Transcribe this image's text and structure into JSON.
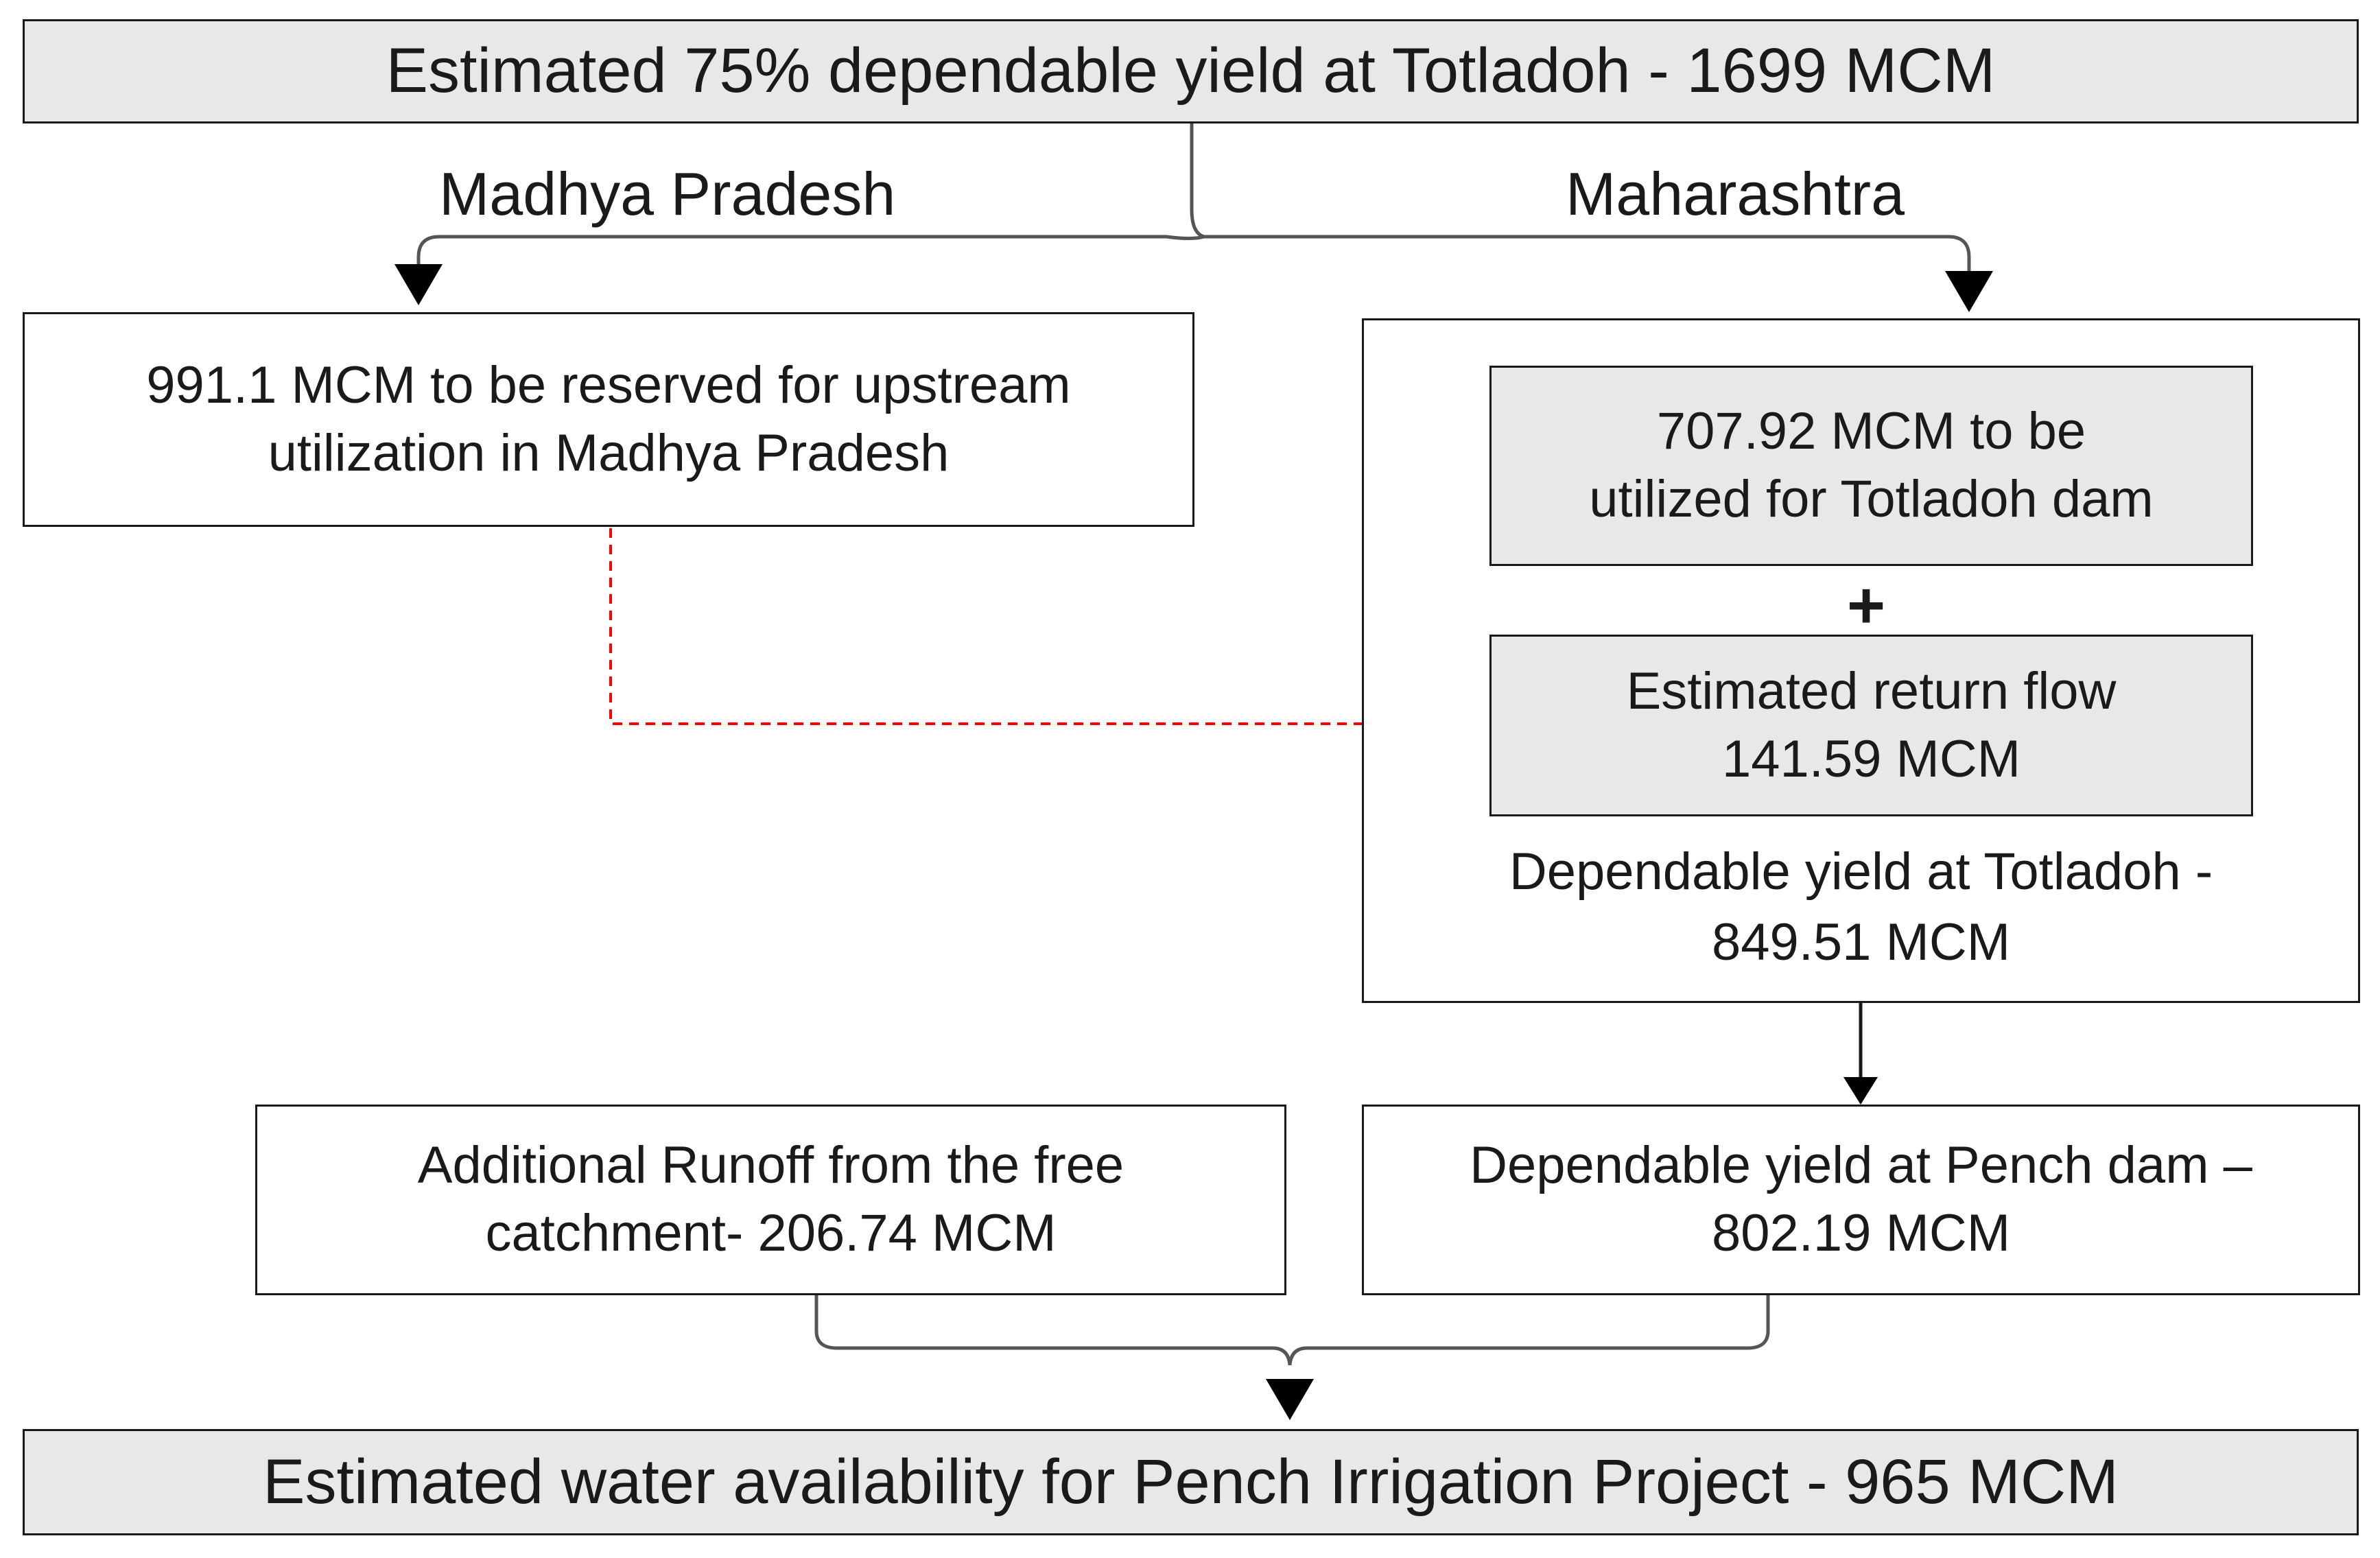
{
  "top_box": "Estimated 75% dependable yield at Totladoh - 1699 MCM",
  "branches": {
    "left_label": "Madhya Pradesh",
    "right_label": "Maharashtra"
  },
  "mp_box": {
    "line1": "991.1 MCM to be reserved for upstream",
    "line2": "utilization in Madhya Pradesh"
  },
  "maharashtra_group": {
    "utilized_box": {
      "line1": "707.92 MCM to be",
      "line2": "utilized for Totladoh dam"
    },
    "plus_sign": "+",
    "return_flow_box": {
      "line1": "Estimated return flow",
      "line2": "141.59 MCM"
    },
    "dependable_text": {
      "line1": "Dependable yield at Totladoh -",
      "line2": "849.51 MCM"
    }
  },
  "runoff_box": {
    "line1": "Additional Runoff from the free",
    "line2": "catchment- 206.74 MCM"
  },
  "pench_box": {
    "line1": "Dependable yield at Pench dam –",
    "line2": "802.19 MCM"
  },
  "bottom_box": "Estimated water availability for Pench Irrigation Project - 965 MCM",
  "colors": {
    "box_fill_gray": "#e8e8e8",
    "line": "#1a1a1a",
    "dashed_arrow": "#ff0000"
  }
}
